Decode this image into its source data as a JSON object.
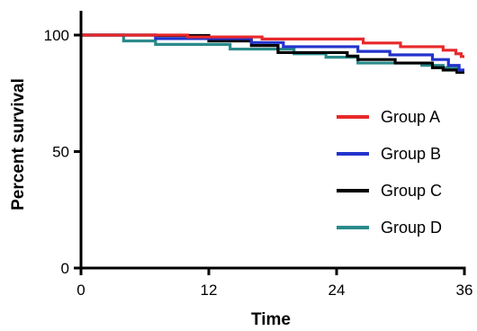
{
  "chart_data": {
    "type": "line",
    "step": true,
    "title": "",
    "xlabel": "Time",
    "ylabel": "Percent survival",
    "xlim": [
      0,
      36
    ],
    "ylim": [
      0,
      100
    ],
    "xticks": [
      0,
      12,
      24,
      36
    ],
    "yticks": [
      0,
      50,
      100
    ],
    "grid": false,
    "legend_position": "right",
    "series": [
      {
        "name": "Group A",
        "color": "#e8292b",
        "points": [
          [
            0,
            100
          ],
          [
            10,
            100
          ],
          [
            10,
            99.2
          ],
          [
            17,
            99.2
          ],
          [
            17,
            98.3
          ],
          [
            26.5,
            98.3
          ],
          [
            26.5,
            96.6
          ],
          [
            30,
            96.6
          ],
          [
            30,
            95
          ],
          [
            34,
            95
          ],
          [
            34,
            93.5
          ],
          [
            35.2,
            93.5
          ],
          [
            35.2,
            92
          ],
          [
            35.7,
            92
          ],
          [
            35.7,
            90.8
          ],
          [
            36,
            90.8
          ]
        ]
      },
      {
        "name": "Group B",
        "color": "#2233cc",
        "points": [
          [
            0,
            100
          ],
          [
            7,
            100
          ],
          [
            7,
            98.5
          ],
          [
            16,
            98.5
          ],
          [
            16,
            96.8
          ],
          [
            19,
            96.8
          ],
          [
            19,
            95
          ],
          [
            26,
            95
          ],
          [
            26,
            93
          ],
          [
            29,
            93
          ],
          [
            29,
            91.5
          ],
          [
            33,
            91.5
          ],
          [
            33,
            89.5
          ],
          [
            34.5,
            89.5
          ],
          [
            34.5,
            87
          ],
          [
            35.5,
            87
          ],
          [
            35.5,
            85
          ],
          [
            36,
            85
          ]
        ]
      },
      {
        "name": "Group C",
        "color": "#000000",
        "points": [
          [
            0,
            100
          ],
          [
            7,
            100
          ],
          [
            7,
            99.8
          ],
          [
            12,
            99.8
          ],
          [
            12,
            97.5
          ],
          [
            16,
            97.5
          ],
          [
            16,
            95.5
          ],
          [
            18.5,
            95.5
          ],
          [
            18.5,
            92.5
          ],
          [
            25,
            92.5
          ],
          [
            25,
            91
          ],
          [
            26,
            91
          ],
          [
            26,
            89.5
          ],
          [
            29.5,
            89.5
          ],
          [
            29.5,
            88
          ],
          [
            33,
            88
          ],
          [
            33,
            86
          ],
          [
            34,
            86
          ],
          [
            34,
            85
          ],
          [
            35.3,
            85
          ],
          [
            35.3,
            84
          ],
          [
            36,
            84
          ]
        ]
      },
      {
        "name": "Group D",
        "color": "#2a8a8a",
        "points": [
          [
            0,
            100
          ],
          [
            4,
            100
          ],
          [
            4,
            97.5
          ],
          [
            7,
            97.5
          ],
          [
            7,
            96
          ],
          [
            14,
            96
          ],
          [
            14,
            94
          ],
          [
            20,
            94
          ],
          [
            20,
            92
          ],
          [
            23,
            92
          ],
          [
            23,
            90.5
          ],
          [
            26,
            90.5
          ],
          [
            26,
            88
          ],
          [
            32,
            88
          ],
          [
            32,
            87
          ],
          [
            34,
            87
          ],
          [
            34,
            86
          ],
          [
            35.5,
            86
          ],
          [
            35.5,
            84.5
          ],
          [
            36,
            84.5
          ]
        ]
      }
    ]
  }
}
